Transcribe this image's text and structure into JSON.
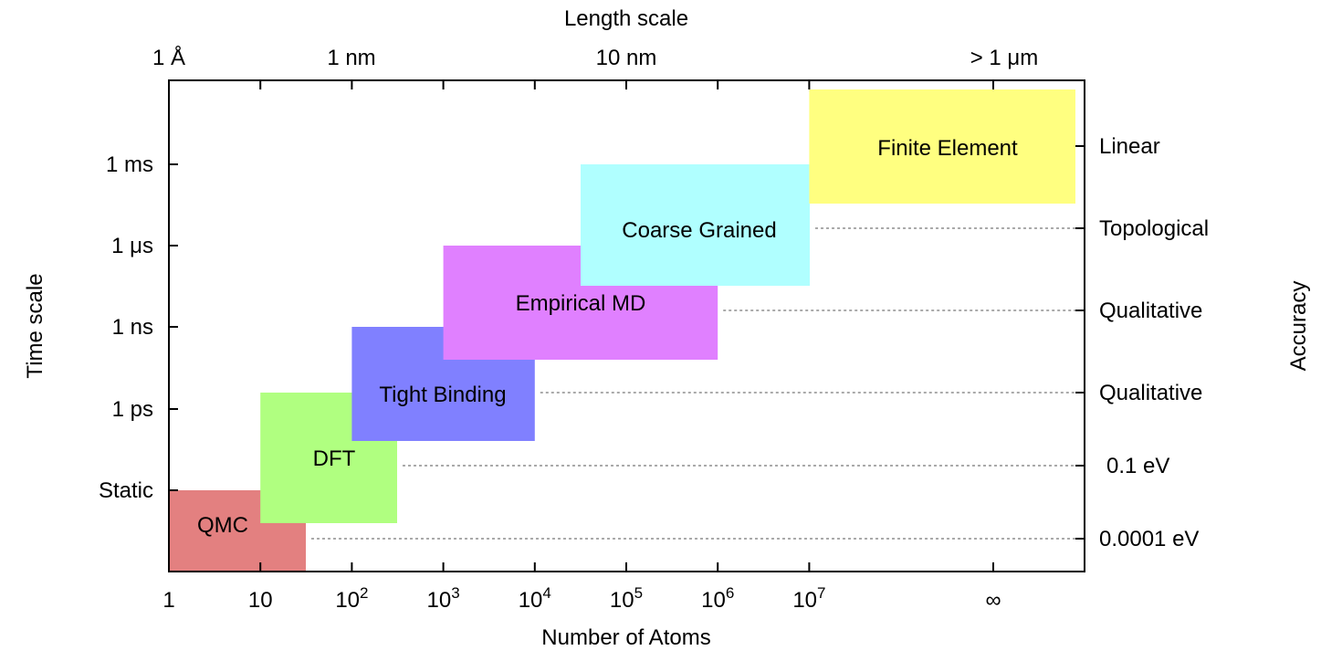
{
  "chart_data": {
    "type": "bar",
    "title": "",
    "xlabel": "Number of Atoms",
    "ylabel": "Time scale",
    "top_label": "Length scale",
    "right_label": "Accuracy",
    "x_scale": "log10",
    "x_ticks": [
      {
        "value": 1,
        "base": "1",
        "sup": ""
      },
      {
        "value": 10,
        "base": "10",
        "sup": ""
      },
      {
        "value": 100,
        "base": "10",
        "sup": "2"
      },
      {
        "value": 1000,
        "base": "10",
        "sup": "3"
      },
      {
        "value": 10000,
        "base": "10",
        "sup": "4"
      },
      {
        "value": 100000,
        "base": "10",
        "sup": "5"
      },
      {
        "value": 1000000,
        "base": "10",
        "sup": "6"
      },
      {
        "value": 10000000,
        "base": "10",
        "sup": "7"
      },
      {
        "value": "inf",
        "base": "∞",
        "sup": ""
      }
    ],
    "top_ticks": [
      {
        "label": "1 Å",
        "atoms": 1
      },
      {
        "label": "1 nm",
        "atoms": 1000
      },
      {
        "label": "10 nm",
        "atoms": 1000000
      },
      {
        "label": "> 1 μm",
        "atoms": "inf"
      }
    ],
    "y_ticks": [
      "Static",
      "1 ps",
      "1 ns",
      "1 μs",
      "1 ms"
    ],
    "accuracy_ticks": [
      "0.0001 eV",
      "0.1 eV",
      "Qualitative",
      "Qualitative",
      "Topological",
      "Linear"
    ],
    "methods": [
      {
        "name": "QMC",
        "atoms_min": 1,
        "atoms_max": 30,
        "time_min": "below Static",
        "time_max": "Static",
        "accuracy": "0.0001 eV",
        "color": "#e38080"
      },
      {
        "name": "DFT",
        "atoms_min": 10,
        "atoms_max": 300,
        "time_min": "below Static",
        "time_max": "1 ps",
        "accuracy": "0.1 eV",
        "color": "#b0ff80"
      },
      {
        "name": "Tight Binding",
        "atoms_min": 100,
        "atoms_max": 10000,
        "time_min": "Static",
        "time_max": "1 ns",
        "accuracy": "Qualitative",
        "color": "#8080ff"
      },
      {
        "name": "Empirical MD",
        "atoms_min": 1000,
        "atoms_max": 1000000,
        "time_min": "1 ps",
        "time_max": "1 μs",
        "accuracy": "Qualitative",
        "color": "#e080ff"
      },
      {
        "name": "Coarse Grained",
        "atoms_min": 30000,
        "atoms_max": 10000000,
        "time_min": "1 ns",
        "time_max": "1 ms",
        "accuracy": "Topological",
        "color": "#b0ffff"
      },
      {
        "name": "Finite Element",
        "atoms_min": 10000000,
        "atoms_max": "inf",
        "time_min": "1 μs",
        "time_max": "above 1 ms",
        "accuracy": "Linear",
        "color": "#ffff80"
      }
    ]
  }
}
